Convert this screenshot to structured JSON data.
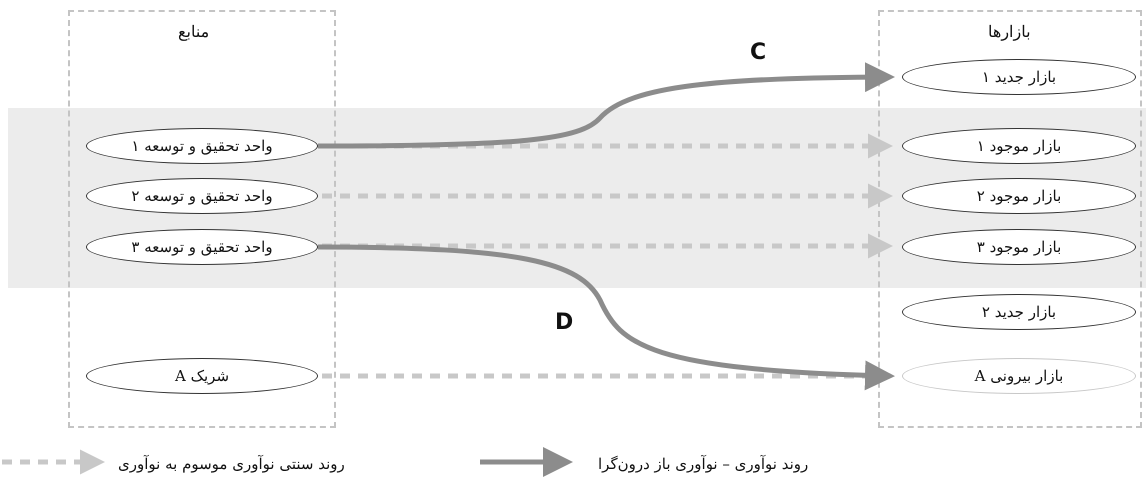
{
  "columns": {
    "sources_title": "منابع",
    "markets_title": "بازارها"
  },
  "sources": [
    {
      "id": "rd1",
      "label": "واحد تحقیق و توسعه ۱"
    },
    {
      "id": "rd2",
      "label": "واحد تحقیق و توسعه ۲"
    },
    {
      "id": "rd3",
      "label": "واحد تحقیق و توسعه ۳"
    },
    {
      "id": "partner",
      "label": "شریک A"
    }
  ],
  "markets": [
    {
      "id": "new1",
      "label": "بازار جدید ۱"
    },
    {
      "id": "ex1",
      "label": "بازار موجود ۱"
    },
    {
      "id": "ex2",
      "label": "بازار موجود ۲"
    },
    {
      "id": "ex3",
      "label": "بازار موجود ۳"
    },
    {
      "id": "new2",
      "label": "بازار جدید ۲"
    },
    {
      "id": "ext",
      "label": "بازار بیرونی A"
    }
  ],
  "flows": {
    "c_label": "C",
    "d_label": "D"
  },
  "legend": {
    "dashed_label": "روند سنتی نوآوری موسوم به نوآوری",
    "solid_label": "روند نوآوری – نوآوری باز درون‌گرا"
  },
  "colors": {
    "solid_arrow": "#8c8c8c",
    "dashed_arrow": "#c8c8c8",
    "band": "#ececec",
    "frame": "#c4c4c4"
  }
}
